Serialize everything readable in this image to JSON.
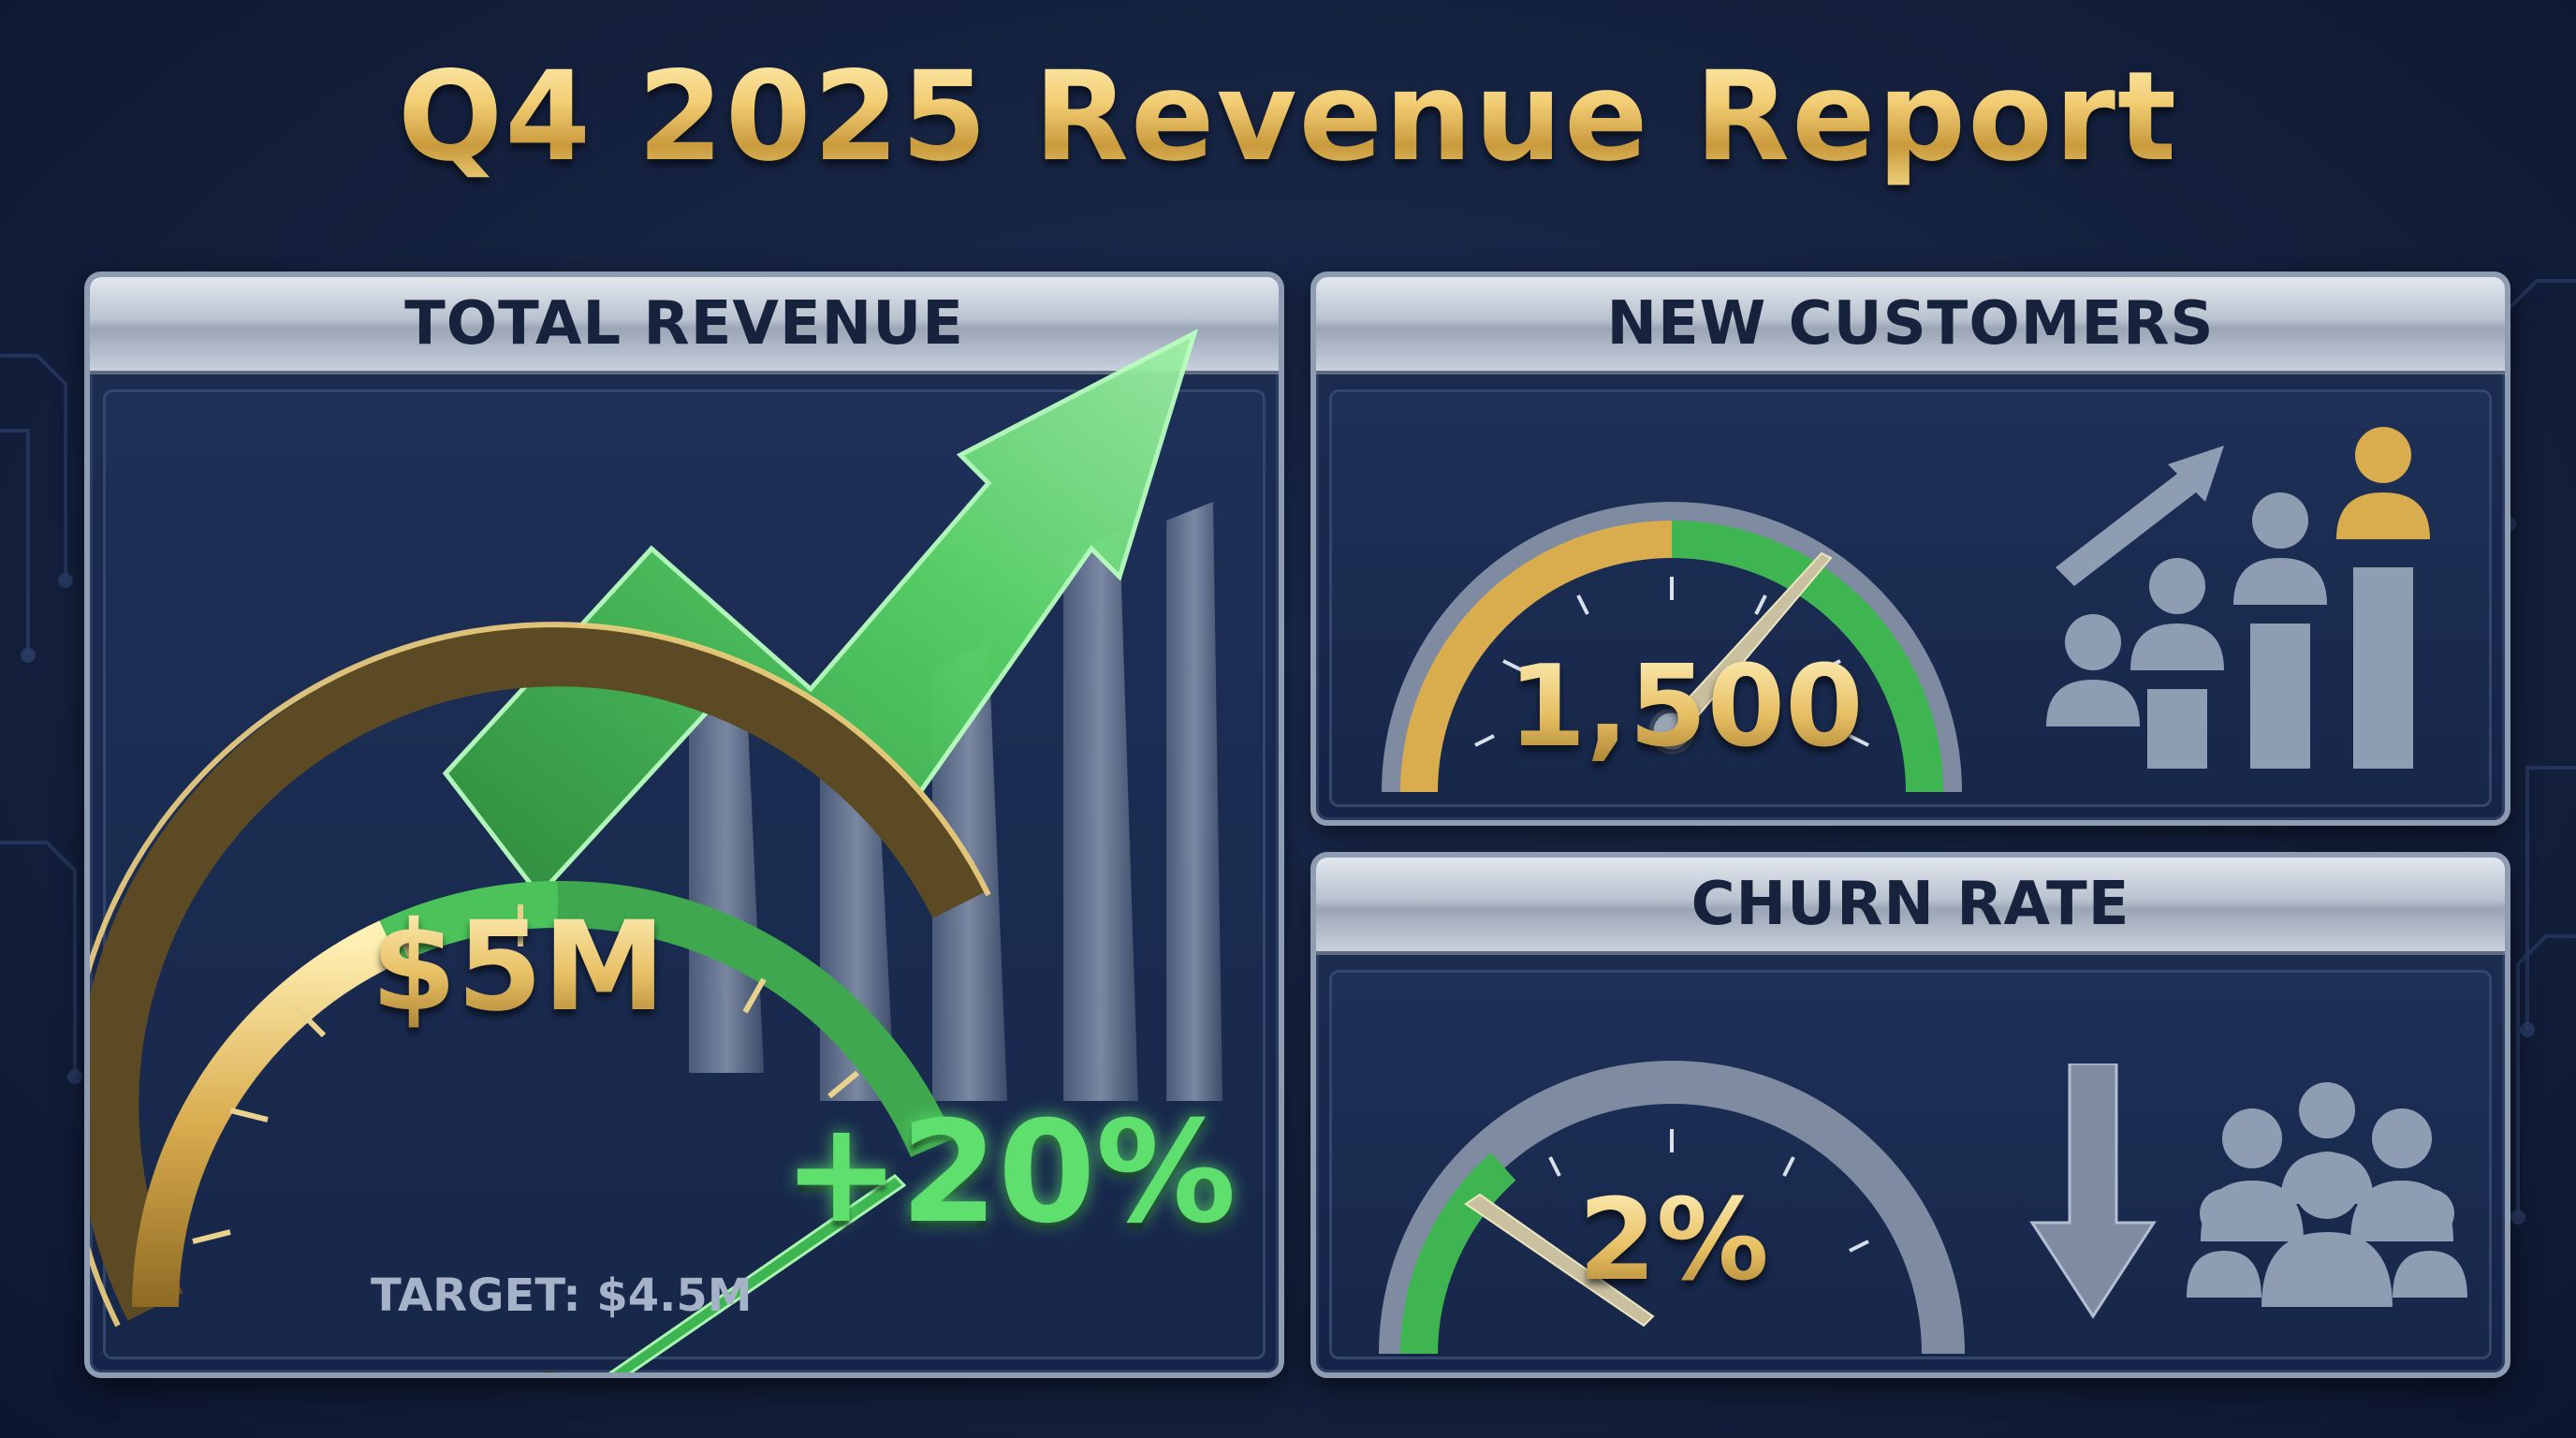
{
  "title": "Q4 2025 Revenue Report",
  "panels": {
    "total_revenue": {
      "label": "TOTAL REVENUE",
      "value": "$5M",
      "change": "+20%",
      "target": "TARGET: $4.5M",
      "gauge_fraction": 0.75
    },
    "new_customers": {
      "label": "NEW CUSTOMERS",
      "value": "1,500",
      "gauge_fraction": 0.72
    },
    "churn_rate": {
      "label": "CHURN RATE",
      "value": "2%",
      "gauge_fraction": 0.2
    }
  },
  "colors": {
    "gold": "#e6c16a",
    "green": "#4cc35a",
    "steel": "#8f9db3",
    "navy": "#16244a"
  },
  "icons": {
    "revenue": [
      "trend-arrow-up-icon",
      "bar-chart-icon",
      "speedometer-icon"
    ],
    "customers": [
      "growth-arrow-icon",
      "people-bar-icon",
      "speedometer-icon"
    ],
    "churn": [
      "down-arrow-icon",
      "group-icon",
      "speedometer-icon"
    ]
  }
}
